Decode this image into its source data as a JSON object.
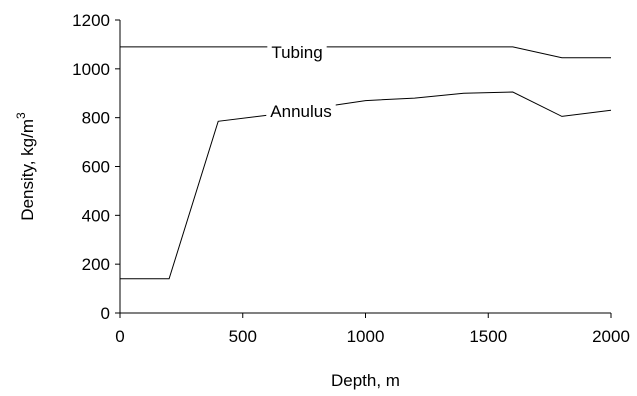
{
  "chart_data": {
    "type": "line",
    "xlabel": "Depth, m",
    "ylabel": "Density, kg/m",
    "ylabel_superscript": "3",
    "xlim": [
      0,
      2000
    ],
    "ylim": [
      0,
      1200
    ],
    "x_ticks": [
      0,
      500,
      1000,
      1500,
      2000
    ],
    "y_ticks": [
      0,
      200,
      400,
      600,
      800,
      1000,
      1200
    ],
    "grid": false,
    "legend": "none",
    "series": [
      {
        "name": "Tubing",
        "x": [
          0,
          200,
          400,
          600,
          800,
          1000,
          1200,
          1400,
          1600,
          1800,
          2000
        ],
        "y": [
          1090,
          1090,
          1090,
          1090,
          1090,
          1090,
          1090,
          1090,
          1090,
          1045,
          1045
        ]
      },
      {
        "name": "Annulus",
        "x": [
          0,
          200,
          400,
          600,
          800,
          1000,
          1200,
          1400,
          1600,
          1800,
          2000
        ],
        "y": [
          140,
          140,
          785,
          810,
          840,
          870,
          880,
          900,
          905,
          805,
          830
        ]
      }
    ]
  }
}
